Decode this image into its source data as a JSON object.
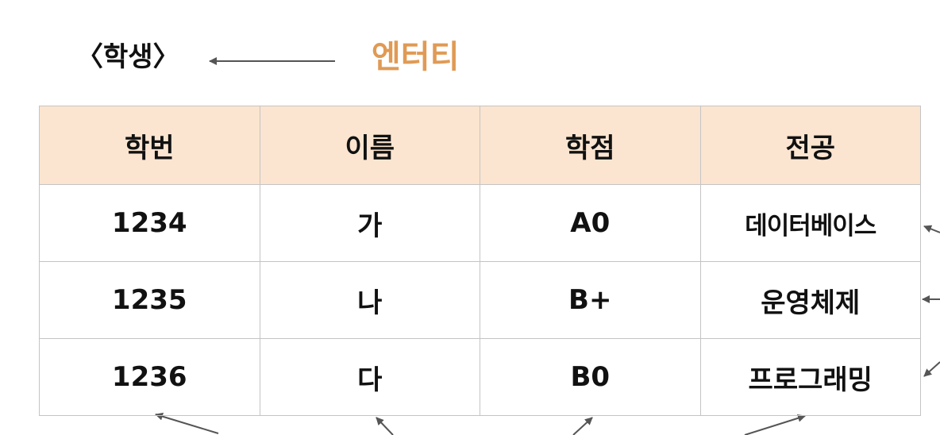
{
  "title": "〈학생〉",
  "entity_label": "엔터티",
  "colors": {
    "entity_label": "#e09a55",
    "header_bg": "#fbe5d0",
    "arrow": "#555555",
    "border": "#c4c4c4"
  },
  "table": {
    "headers": [
      "학번",
      "이름",
      "학점",
      "전공"
    ],
    "rows": [
      [
        "1234",
        "가",
        "A0",
        "데이터베이스"
      ],
      [
        "1235",
        "나",
        "B+",
        "운영체제"
      ],
      [
        "1236",
        "다",
        "B0",
        "프로그래밍"
      ]
    ]
  }
}
